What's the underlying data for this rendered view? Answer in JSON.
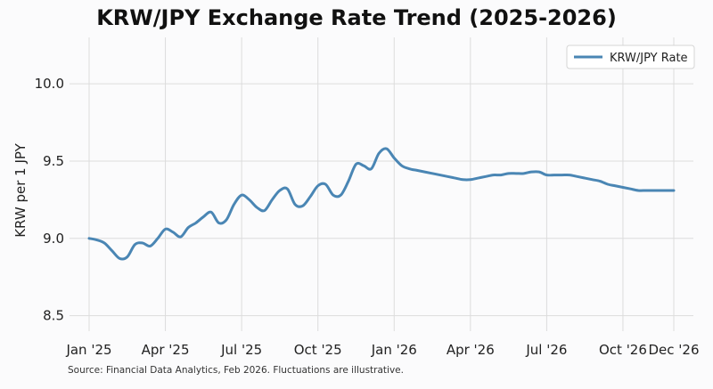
{
  "chart_data": {
    "type": "line",
    "title": "KRW/JPY Exchange Rate Trend (2025-2026)",
    "xlabel": "",
    "ylabel": "KRW per 1 JPY",
    "ylim": [
      8.4,
      10.3
    ],
    "yticks": [
      8.5,
      9.0,
      9.5,
      10.0
    ],
    "ytick_labels": [
      "8.5",
      "9.0",
      "9.5",
      "10.0"
    ],
    "xlim": [
      0,
      23
    ],
    "xticks": [
      0,
      3,
      6,
      9,
      12,
      15,
      18,
      21,
      23
    ],
    "xtick_labels": [
      "Jan '25",
      "Apr '25",
      "Jul '25",
      "Oct '25",
      "Jan '26",
      "Apr '26",
      "Jul '26",
      "Oct '26",
      "Dec '26"
    ],
    "grid": true,
    "legend_position": "top-right",
    "series": [
      {
        "name": "KRW/JPY Rate",
        "color": "#4a86b4",
        "x": [
          0,
          0.3,
          0.6,
          0.9,
          1.2,
          1.5,
          1.8,
          2.1,
          2.4,
          2.7,
          3.0,
          3.3,
          3.6,
          3.9,
          4.2,
          4.5,
          4.8,
          5.1,
          5.4,
          5.7,
          6.0,
          6.3,
          6.6,
          6.9,
          7.2,
          7.5,
          7.8,
          8.1,
          8.4,
          8.7,
          9.0,
          9.3,
          9.6,
          9.9,
          10.2,
          10.5,
          10.8,
          11.1,
          11.4,
          11.7,
          12.0,
          12.3,
          12.6,
          12.9,
          13.2,
          13.5,
          13.8,
          14.1,
          14.4,
          14.7,
          15.0,
          15.3,
          15.6,
          15.9,
          16.2,
          16.5,
          16.8,
          17.1,
          17.4,
          17.7,
          18.0,
          18.3,
          18.6,
          18.9,
          19.2,
          19.5,
          19.8,
          20.1,
          20.4,
          20.7,
          21.0,
          21.3,
          21.6,
          21.9,
          22.2,
          22.5,
          22.8,
          23.0
        ],
        "values": [
          9.0,
          8.99,
          8.97,
          8.92,
          8.87,
          8.88,
          8.96,
          8.97,
          8.95,
          9.0,
          9.06,
          9.04,
          9.01,
          9.07,
          9.1,
          9.14,
          9.17,
          9.1,
          9.12,
          9.22,
          9.28,
          9.25,
          9.2,
          9.18,
          9.25,
          9.31,
          9.32,
          9.22,
          9.21,
          9.27,
          9.34,
          9.35,
          9.28,
          9.28,
          9.37,
          9.48,
          9.47,
          9.45,
          9.55,
          9.58,
          9.52,
          9.47,
          9.45,
          9.44,
          9.43,
          9.42,
          9.41,
          9.4,
          9.39,
          9.38,
          9.38,
          9.39,
          9.4,
          9.41,
          9.41,
          9.42,
          9.42,
          9.42,
          9.43,
          9.43,
          9.41,
          9.41,
          9.41,
          9.41,
          9.4,
          9.39,
          9.38,
          9.37,
          9.35,
          9.34,
          9.33,
          9.32,
          9.31,
          9.31,
          9.31,
          9.31,
          9.31,
          9.31
        ]
      }
    ],
    "source_note": "Source: Financial Data Analytics, Feb 2026. Fluctuations are illustrative."
  }
}
